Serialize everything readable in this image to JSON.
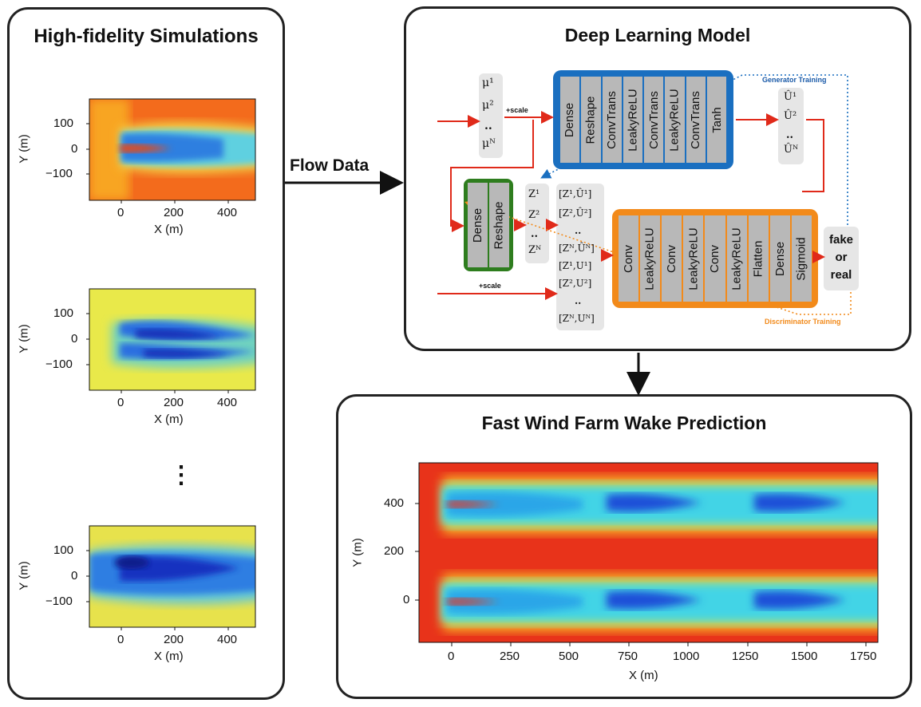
{
  "panels": {
    "left_title": "High-fidelity Simulations",
    "mid_title": "Deep Learning Model",
    "bottom_title": "Fast Wind Farm Wake Prediction"
  },
  "arrows": {
    "flow_data": "Flow Data"
  },
  "sim_plots": {
    "xlabel": "X (m)",
    "ylabel": "Y (m)",
    "yticks": [
      "100",
      "0",
      "−100"
    ],
    "xticks": [
      "0",
      "200",
      "400"
    ],
    "ellipsis": "⋮"
  },
  "model": {
    "mu": [
      "μ¹",
      "μ²",
      "․․",
      "μᴺ"
    ],
    "scale1": "+scale",
    "scale2": "+scale",
    "generator_layers": [
      "Dense",
      "Reshape",
      "ConvTrans",
      "LeakyReLU",
      "ConvTrans",
      "LeakyReLU",
      "ConvTrans",
      "Tanh"
    ],
    "uhat": [
      "Û¹",
      "Û²",
      "․․",
      "Ûᴺ"
    ],
    "embed_layers": [
      "Dense",
      "Reshape"
    ],
    "z": [
      "Z¹",
      "Z²",
      "․․",
      "Zᴺ"
    ],
    "pairs_fake": [
      "[Z¹,Û¹]",
      "[Z²,Û²]",
      "․․",
      "[Zᴺ,Ûᴺ]"
    ],
    "pairs_real": [
      "[Z¹,U¹]",
      "[Z²,U²]",
      "․․",
      "[Zᴺ,Uᴺ]"
    ],
    "discriminator_layers": [
      "Conv",
      "LeakyReLU",
      "Conv",
      "LeakyReLU",
      "Conv",
      "LeakyReLU",
      "Flatten",
      "Dense",
      "Sigmoid"
    ],
    "output": [
      "fake",
      "or",
      "real"
    ],
    "generator_training": "Generator Training",
    "discriminator_training": "Discriminator Training",
    "colors": {
      "generator": "#1a6fc0",
      "discriminator": "#f28a1a",
      "embed": "#2e7d1e",
      "arrow": "#e02a1a"
    }
  },
  "prediction_plot": {
    "xlabel": "X (m)",
    "ylabel": "Y (m)",
    "xticks": [
      "0",
      "250",
      "500",
      "750",
      "1000",
      "1250",
      "1500",
      "1750"
    ],
    "yticks": [
      "400",
      "200",
      "0"
    ]
  }
}
